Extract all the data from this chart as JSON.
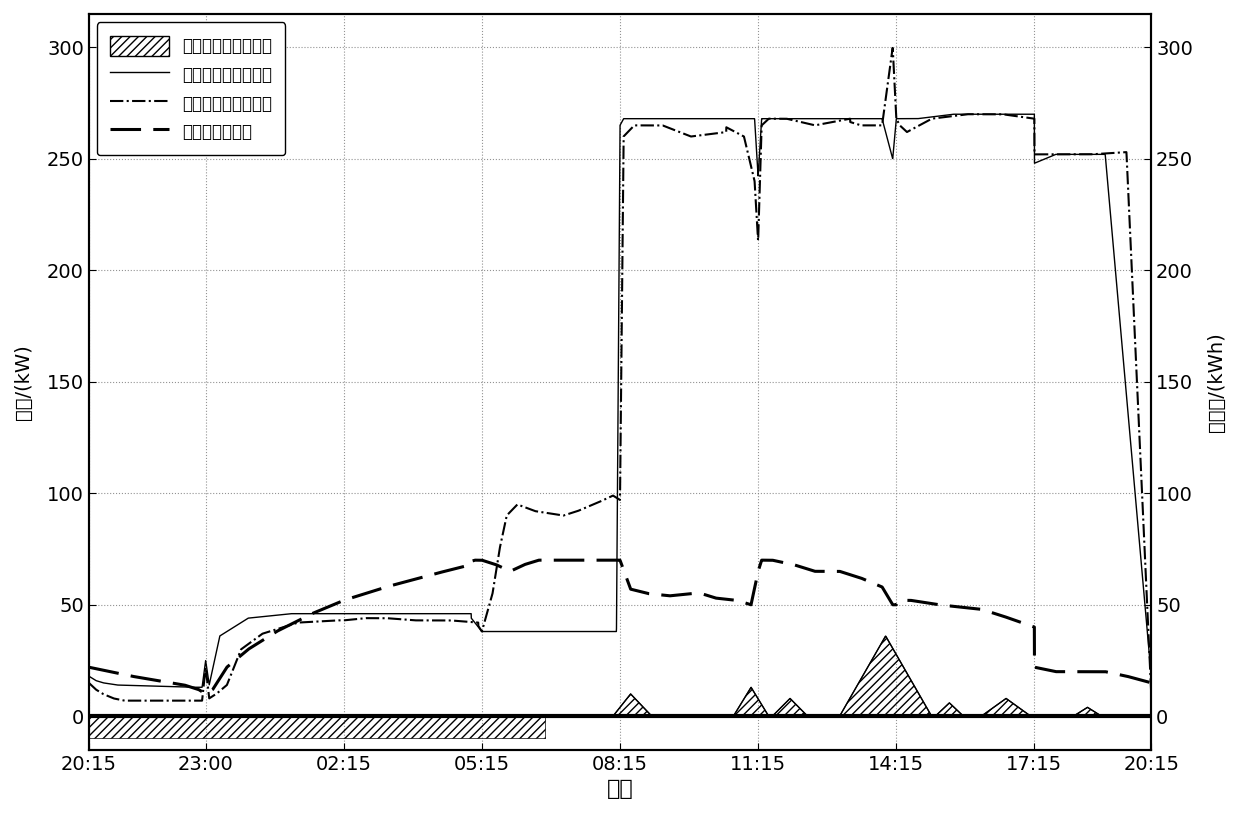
{
  "xlabel": "时间",
  "ylabel_left": "功率/(kW)",
  "ylabel_right": "荷电量/(kWh)",
  "yticks": [
    0,
    50,
    100,
    150,
    200,
    250,
    300
  ],
  "ylim": [
    -15,
    315
  ],
  "legend_labels": [
    "电池充放电功率曲线",
    "储能配置后用电曲线",
    "储能配置前用电曲线",
    "电池荷电量变化"
  ],
  "xtick_labels": [
    "20:15",
    "23:00",
    "02:15",
    "05:15",
    "08:15",
    "11:15",
    "14:15",
    "17:15",
    "20:15"
  ],
  "T0": 0,
  "T1": 165,
  "T2": 360,
  "T3": 555,
  "T4": 750,
  "T5": 945,
  "T6": 1140,
  "T7": 1335,
  "T8": 1500
}
